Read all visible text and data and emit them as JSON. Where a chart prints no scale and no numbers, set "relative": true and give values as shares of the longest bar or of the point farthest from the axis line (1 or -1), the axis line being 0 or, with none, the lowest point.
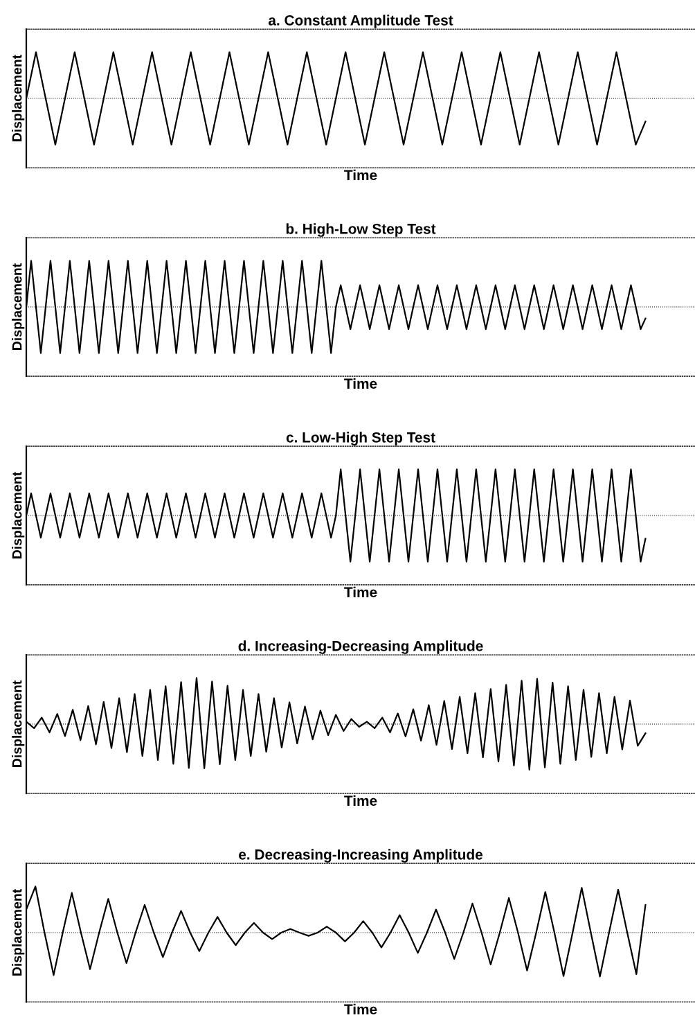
{
  "chart_data": [
    {
      "type": "line",
      "title": "a. Constant Amplitude Test",
      "xlabel": "Time",
      "ylabel": "Displacement",
      "relative": true,
      "tick_labels": false,
      "color": "#000000",
      "ref_lines": [
        {
          "axis": "y",
          "value": 0,
          "line_style": "dotted"
        }
      ],
      "categories": [
        null,
        null,
        null,
        null,
        null,
        null,
        null,
        null,
        null,
        null,
        null,
        null,
        null,
        null,
        null,
        null,
        null,
        null,
        null,
        null,
        null,
        null,
        null,
        null,
        null,
        null,
        null,
        null,
        null,
        null,
        null,
        null,
        null,
        null,
        null,
        null,
        null,
        null,
        null,
        null,
        null,
        null,
        null,
        null,
        null,
        null,
        null,
        null,
        null,
        null,
        null,
        null,
        null,
        null,
        null,
        null,
        null,
        null,
        null,
        null,
        null,
        null,
        null,
        null,
        null
      ],
      "values": [
        0,
        1,
        0,
        -1,
        0,
        1,
        0,
        -1,
        0,
        1,
        0,
        -1,
        0,
        1,
        0,
        -1,
        0,
        1,
        0,
        -1,
        0,
        1,
        0,
        -1,
        0,
        1,
        0,
        -1,
        0,
        1,
        0,
        -1,
        0,
        1,
        0,
        -1,
        0,
        1,
        0,
        -1,
        0,
        1,
        0,
        -1,
        0,
        1,
        0,
        -1,
        0,
        1,
        0,
        -1,
        0,
        1,
        0,
        -1,
        0,
        1,
        0,
        -1,
        0,
        1,
        0,
        -1,
        -0.5
      ]
    },
    {
      "type": "line",
      "title": "b. High-Low Step Test",
      "xlabel": "Time",
      "ylabel": "Displacement",
      "relative": true,
      "tick_labels": false,
      "color": "#000000",
      "ref_lines": [
        {
          "axis": "y",
          "value": 0,
          "line_style": "dotted"
        }
      ],
      "categories": [
        null,
        null,
        null,
        null,
        null,
        null,
        null,
        null,
        null,
        null,
        null,
        null,
        null,
        null,
        null,
        null,
        null,
        null,
        null,
        null,
        null,
        null,
        null,
        null,
        null,
        null,
        null,
        null,
        null,
        null,
        null,
        null,
        null,
        null,
        null,
        null,
        null,
        null,
        null,
        null,
        null,
        null,
        null,
        null,
        null,
        null,
        null,
        null,
        null,
        null,
        null,
        null,
        null,
        null,
        null,
        null,
        null,
        null,
        null,
        null,
        null,
        null,
        null,
        null,
        null,
        null,
        null,
        null,
        null,
        null,
        null,
        null,
        null,
        null,
        null,
        null,
        null,
        null,
        null,
        null,
        null,
        null,
        null,
        null,
        null,
        null,
        null,
        null,
        null,
        null,
        null,
        null,
        null,
        null,
        null,
        null,
        null,
        null,
        null,
        null,
        null,
        null,
        null,
        null,
        null,
        null,
        null,
        null,
        null,
        null,
        null,
        null,
        null,
        null,
        null,
        null,
        null,
        null,
        null,
        null,
        null,
        null,
        null,
        null,
        null,
        null,
        null,
        null,
        null
      ],
      "values": [
        0,
        1,
        0,
        -1,
        0,
        1,
        0,
        -1,
        0,
        1,
        0,
        -1,
        0,
        1,
        0,
        -1,
        0,
        1,
        0,
        -1,
        0,
        1,
        0,
        -1,
        0,
        1,
        0,
        -1,
        0,
        1,
        0,
        -1,
        0,
        1,
        0,
        -1,
        0,
        1,
        0,
        -1,
        0,
        1,
        0,
        -1,
        0,
        1,
        0,
        -1,
        0,
        1,
        0,
        -1,
        0,
        1,
        0,
        -1,
        0,
        1,
        0,
        -1,
        0,
        1,
        0,
        -1,
        0,
        0.47,
        0,
        -0.48,
        0,
        0.47,
        0,
        -0.48,
        0,
        0.47,
        0,
        -0.48,
        0,
        0.47,
        0,
        -0.48,
        0,
        0.47,
        0,
        -0.48,
        0,
        0.47,
        0,
        -0.48,
        0,
        0.47,
        0,
        -0.48,
        0,
        0.47,
        0,
        -0.48,
        0,
        0.47,
        0,
        -0.48,
        0,
        0.47,
        0,
        -0.48,
        0,
        0.47,
        0,
        -0.48,
        0,
        0.47,
        0,
        -0.48,
        0,
        0.47,
        0,
        -0.48,
        0,
        0.47,
        0,
        -0.48,
        0,
        0.47,
        0,
        -0.48,
        0,
        0.47,
        0,
        -0.48,
        -0.25
      ]
    },
    {
      "type": "line",
      "title": "c. Low-High Step Test",
      "xlabel": "Time",
      "ylabel": "Displacement",
      "relative": true,
      "tick_labels": false,
      "color": "#000000",
      "ref_lines": [
        {
          "axis": "y",
          "value": 0,
          "line_style": "dotted"
        }
      ],
      "categories": [
        null,
        null,
        null,
        null,
        null,
        null,
        null,
        null,
        null,
        null,
        null,
        null,
        null,
        null,
        null,
        null,
        null,
        null,
        null,
        null,
        null,
        null,
        null,
        null,
        null,
        null,
        null,
        null,
        null,
        null,
        null,
        null,
        null,
        null,
        null,
        null,
        null,
        null,
        null,
        null,
        null,
        null,
        null,
        null,
        null,
        null,
        null,
        null,
        null,
        null,
        null,
        null,
        null,
        null,
        null,
        null,
        null,
        null,
        null,
        null,
        null,
        null,
        null,
        null,
        null,
        null,
        null,
        null,
        null,
        null,
        null,
        null,
        null,
        null,
        null,
        null,
        null,
        null,
        null,
        null,
        null,
        null,
        null,
        null,
        null,
        null,
        null,
        null,
        null,
        null,
        null,
        null,
        null,
        null,
        null,
        null,
        null,
        null,
        null,
        null,
        null,
        null,
        null,
        null,
        null,
        null,
        null,
        null,
        null,
        null,
        null,
        null,
        null,
        null,
        null,
        null,
        null,
        null,
        null,
        null,
        null,
        null,
        null,
        null,
        null,
        null,
        null,
        null,
        null
      ],
      "values": [
        0,
        0.48,
        0,
        -0.48,
        0,
        0.48,
        0,
        -0.48,
        0,
        0.48,
        0,
        -0.48,
        0,
        0.48,
        0,
        -0.48,
        0,
        0.48,
        0,
        -0.48,
        0,
        0.48,
        0,
        -0.48,
        0,
        0.48,
        0,
        -0.48,
        0,
        0.48,
        0,
        -0.48,
        0,
        0.48,
        0,
        -0.48,
        0,
        0.48,
        0,
        -0.48,
        0,
        0.48,
        0,
        -0.48,
        0,
        0.48,
        0,
        -0.48,
        0,
        0.48,
        0,
        -0.48,
        0,
        0.48,
        0,
        -0.48,
        0,
        0.48,
        0,
        -0.48,
        0,
        0.48,
        0,
        -0.48,
        0,
        1,
        0,
        -1,
        0,
        1,
        0,
        -1,
        0,
        1,
        0,
        -1,
        0,
        1,
        0,
        -1,
        0,
        1,
        0,
        -1,
        0,
        1,
        0,
        -1,
        0,
        1,
        0,
        -1,
        0,
        1,
        0,
        -1,
        0,
        1,
        0,
        -1,
        0,
        1,
        0,
        -1,
        0,
        1,
        0,
        -1,
        0,
        1,
        0,
        -1,
        0,
        1,
        0,
        -1,
        0,
        1,
        0,
        -1,
        0,
        1,
        0,
        -1,
        0,
        1,
        0,
        -1,
        -0.5
      ]
    },
    {
      "type": "line",
      "title": "d. Increasing-Decreasing Amplitude",
      "xlabel": "Time",
      "ylabel": "Displacement",
      "relative": true,
      "tick_labels": false,
      "color": "#000000",
      "ref_lines": [
        {
          "axis": "y",
          "value": 0,
          "line_style": "dotted"
        }
      ],
      "categories": [
        null,
        null,
        null,
        null,
        null,
        null,
        null,
        null,
        null,
        null,
        null,
        null,
        null,
        null,
        null,
        null,
        null,
        null,
        null,
        null,
        null,
        null,
        null,
        null,
        null,
        null,
        null,
        null,
        null,
        null,
        null,
        null,
        null,
        null,
        null,
        null,
        null,
        null,
        null,
        null,
        null,
        null,
        null,
        null,
        null,
        null,
        null,
        null,
        null,
        null,
        null,
        null,
        null,
        null,
        null,
        null,
        null,
        null,
        null,
        null,
        null,
        null,
        null,
        null,
        null,
        null,
        null,
        null,
        null,
        null,
        null,
        null,
        null,
        null,
        null,
        null,
        null,
        null,
        null,
        null,
        null
      ],
      "values": [
        0.05,
        -0.09,
        0.14,
        -0.18,
        0.22,
        -0.26,
        0.31,
        -0.35,
        0.39,
        -0.44,
        0.48,
        -0.52,
        0.56,
        -0.61,
        0.65,
        -0.69,
        0.74,
        -0.78,
        0.82,
        -0.86,
        0.91,
        -0.95,
        1,
        -0.96,
        0.92,
        -0.87,
        0.83,
        -0.78,
        0.74,
        -0.69,
        0.65,
        -0.6,
        0.56,
        -0.51,
        0.47,
        -0.42,
        0.38,
        -0.33,
        0.29,
        -0.24,
        0.2,
        -0.15,
        0.11,
        -0.06,
        0.05,
        -0.09,
        0.14,
        -0.18,
        0.23,
        -0.27,
        0.32,
        -0.36,
        0.41,
        -0.45,
        0.5,
        -0.54,
        0.59,
        -0.63,
        0.67,
        -0.72,
        0.76,
        -0.81,
        0.85,
        -0.9,
        0.94,
        -0.99,
        0.98,
        -0.94,
        0.9,
        -0.86,
        0.82,
        -0.78,
        0.74,
        -0.71,
        0.67,
        -0.63,
        0.59,
        -0.55,
        0.51,
        -0.47,
        -0.2
      ]
    },
    {
      "type": "line",
      "title": "e. Decreasing-Increasing Amplitude",
      "xlabel": "Time",
      "ylabel": "Displacement",
      "relative": true,
      "tick_labels": false,
      "color": "#000000",
      "ref_lines": [
        {
          "axis": "y",
          "value": 0,
          "line_style": "dotted"
        }
      ],
      "categories": [
        null,
        null,
        null,
        null,
        null,
        null,
        null,
        null,
        null,
        null,
        null,
        null,
        null,
        null,
        null,
        null,
        null,
        null,
        null,
        null,
        null,
        null,
        null,
        null,
        null,
        null,
        null,
        null,
        null,
        null,
        null,
        null,
        null,
        null,
        null,
        null,
        null,
        null,
        null,
        null,
        null,
        null,
        null,
        null,
        null,
        null,
        null,
        null,
        null,
        null,
        null,
        null,
        null,
        null,
        null,
        null,
        null,
        null,
        null,
        null,
        null,
        null,
        null,
        null,
        null,
        null,
        null,
        null,
        null
      ],
      "values": [
        0.5,
        1,
        0,
        -0.92,
        0,
        0.86,
        0,
        -0.79,
        0,
        0.73,
        0,
        -0.66,
        0,
        0.6,
        0,
        -0.53,
        0,
        0.47,
        0,
        -0.4,
        0,
        0.34,
        0,
        -0.27,
        0,
        0.21,
        0,
        -0.14,
        0,
        0.08,
        0,
        -0.07,
        0,
        0.13,
        0,
        -0.19,
        0,
        0.25,
        0,
        -0.32,
        0,
        0.38,
        0,
        -0.44,
        0,
        0.5,
        0,
        -0.57,
        0,
        0.63,
        0,
        -0.69,
        0,
        0.75,
        0,
        -0.82,
        0,
        0.88,
        0,
        -0.94,
        0,
        0.97,
        0,
        -0.95,
        0,
        0.93,
        0,
        -0.9,
        0.6
      ]
    }
  ]
}
